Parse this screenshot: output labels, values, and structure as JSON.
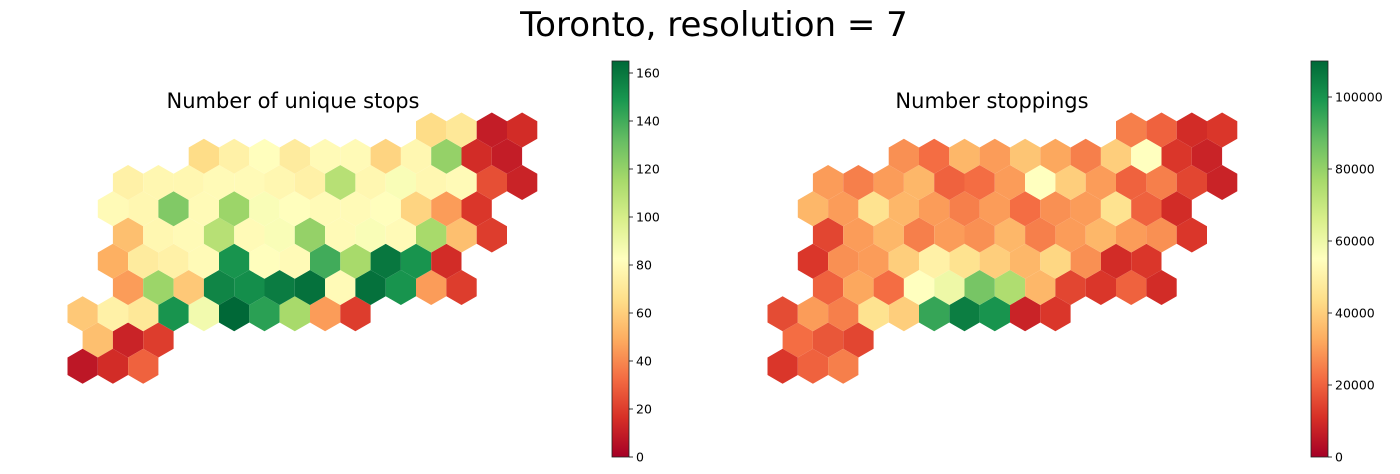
{
  "figure": {
    "title": "Toronto, resolution = 7"
  },
  "colormap": {
    "name": "RdYlGn",
    "stops": [
      "#a50026",
      "#d73027",
      "#f46d43",
      "#fdae61",
      "#fee08b",
      "#ffffbf",
      "#d9ef8b",
      "#a6d96a",
      "#66bd63",
      "#1a9850",
      "#006837"
    ]
  },
  "chart_data": [
    {
      "type": "heatmap",
      "title": "Number of unique stops",
      "colorbar": {
        "vmin": 0,
        "vmax": 165,
        "ticks": [
          0,
          20,
          40,
          60,
          80,
          100,
          120,
          140,
          160
        ]
      },
      "cells": [
        [
          8,
          2,
          55,
          15
        ],
        [
          8,
          3,
          12
        ],
        [
          8,
          4,
          20
        ],
        [
          9,
          2,
          8
        ],
        [
          9,
          3,
          15
        ],
        [
          9,
          4,
          30
        ],
        [
          7,
          2,
          58
        ],
        [
          7,
          3,
          75
        ],
        [
          7,
          4,
          70
        ],
        [
          7,
          5,
          62
        ],
        [
          7,
          6,
          80
        ],
        [
          7,
          8,
          50
        ],
        [
          7,
          9,
          115
        ],
        [
          7,
          10,
          45
        ],
        [
          7,
          11,
          20
        ],
        [
          6,
          3,
          45
        ],
        [
          6,
          4,
          78
        ],
        [
          6,
          5,
          58
        ],
        [
          6,
          6,
          75
        ],
        [
          6,
          7,
          78
        ],
        [
          6,
          8,
          80
        ],
        [
          6,
          9,
          75
        ],
        [
          6,
          10,
          80
        ],
        [
          6,
          11,
          82
        ],
        [
          6,
          12,
          60
        ],
        [
          6,
          13,
          45
        ],
        [
          6,
          14,
          20
        ],
        [
          5,
          3,
          50
        ],
        [
          5,
          4,
          72
        ],
        [
          5,
          5,
          75
        ],
        [
          5,
          6,
          80
        ],
        [
          5,
          7,
          80
        ],
        [
          5,
          8,
          82
        ],
        [
          5,
          9,
          80
        ],
        [
          5,
          10,
          78
        ],
        [
          5,
          11,
          80
        ],
        [
          5,
          12,
          62
        ],
        [
          5,
          13,
          55
        ],
        [
          5,
          14,
          15
        ],
        [
          4,
          3,
          55
        ],
        [
          4,
          4,
          78
        ],
        [
          4,
          5,
          80
        ],
        [
          4,
          6,
          82
        ],
        [
          4,
          7,
          80
        ],
        [
          4,
          8,
          85
        ],
        [
          4,
          9,
          82
        ],
        [
          4,
          10,
          80
        ],
        [
          4,
          11,
          85
        ],
        [
          4,
          12,
          80
        ],
        [
          4,
          13,
          82
        ],
        [
          4,
          14,
          55
        ],
        [
          4,
          15,
          20
        ],
        [
          3,
          3,
          80
        ],
        [
          3,
          4,
          78
        ],
        [
          3,
          5,
          78
        ],
        [
          3,
          6,
          80
        ],
        [
          3,
          7,
          80
        ],
        [
          3,
          8,
          85
        ],
        [
          3,
          9,
          82
        ],
        [
          3,
          10,
          80
        ],
        [
          3,
          11,
          80
        ],
        [
          3,
          12,
          82
        ],
        [
          3,
          13,
          62
        ],
        [
          3,
          14,
          45
        ],
        [
          3,
          15,
          18
        ],
        [
          2,
          3,
          75
        ],
        [
          2,
          4,
          78
        ],
        [
          2,
          5,
          78
        ],
        [
          2,
          6,
          80
        ],
        [
          2,
          7,
          80
        ],
        [
          2,
          8,
          78
        ],
        [
          2,
          9,
          75
        ],
        [
          2,
          10,
          80
        ],
        [
          2,
          11,
          78
        ],
        [
          2,
          12,
          85
        ],
        [
          2,
          13,
          78
        ],
        [
          2,
          14,
          80
        ],
        [
          2,
          15,
          25
        ],
        [
          2,
          16,
          12
        ],
        [
          1,
          6,
          65
        ],
        [
          1,
          7,
          75
        ],
        [
          1,
          8,
          82
        ],
        [
          1,
          9,
          72
        ],
        [
          1,
          10,
          80
        ],
        [
          1,
          11,
          80
        ],
        [
          1,
          12,
          62
        ],
        [
          1,
          13,
          78
        ],
        [
          1,
          14,
          120
        ],
        [
          1,
          15,
          15
        ],
        [
          1,
          16,
          10
        ],
        [
          0,
          13,
          65
        ],
        [
          0,
          14,
          70
        ],
        [
          0,
          15,
          10
        ],
        [
          0,
          16,
          15
        ]
      ],
      "highlights": [
        [
          7,
          5,
          150
        ],
        [
          7,
          7,
          165
        ],
        [
          6,
          8,
          158
        ],
        [
          6,
          9,
          162
        ],
        [
          7,
          8,
          145
        ],
        [
          5,
          12,
          160
        ],
        [
          7,
          6,
          88
        ],
        [
          6,
          7,
          152
        ],
        [
          6,
          6,
          155
        ],
        [
          5,
          7,
          150
        ],
        [
          5,
          10,
          140
        ],
        [
          5,
          11,
          115
        ],
        [
          4,
          6,
          110
        ],
        [
          3,
          5,
          125
        ],
        [
          3,
          7,
          118
        ],
        [
          2,
          10,
          110
        ],
        [
          6,
          12,
          150
        ],
        [
          6,
          11,
          162
        ],
        [
          5,
          13,
          150
        ],
        [
          4,
          13,
          115
        ],
        [
          4,
          9,
          120
        ],
        [
          6,
          4,
          118
        ]
      ]
    },
    {
      "type": "heatmap",
      "title": "Number stoppings",
      "colorbar": {
        "vmin": 0,
        "vmax": 110000,
        "ticks": [
          0,
          20000,
          40000,
          60000,
          80000,
          100000
        ]
      },
      "cells": [
        [
          8,
          2,
          22000
        ],
        [
          8,
          3,
          18000
        ],
        [
          8,
          4,
          15000
        ],
        [
          9,
          2,
          12000
        ],
        [
          9,
          3,
          20000
        ],
        [
          9,
          4,
          25000
        ],
        [
          7,
          2,
          16000
        ],
        [
          7,
          3,
          30000
        ],
        [
          7,
          4,
          25000
        ],
        [
          7,
          5,
          35000
        ],
        [
          7,
          6,
          40000
        ],
        [
          7,
          8,
          28000
        ],
        [
          7,
          9,
          100000
        ],
        [
          7,
          10,
          12000
        ],
        [
          7,
          11,
          15000
        ],
        [
          6,
          3,
          20000
        ],
        [
          6,
          4,
          32000
        ],
        [
          6,
          5,
          22000
        ],
        [
          6,
          6,
          30000
        ],
        [
          6,
          7,
          38000
        ],
        [
          6,
          8,
          45000
        ],
        [
          6,
          9,
          42000
        ],
        [
          6,
          10,
          35000
        ],
        [
          6,
          11,
          28000
        ],
        [
          6,
          12,
          32000
        ],
        [
          6,
          13,
          20000
        ],
        [
          6,
          14,
          10000
        ],
        [
          5,
          3,
          12000
        ],
        [
          5,
          4,
          28000
        ],
        [
          5,
          5,
          30000
        ],
        [
          5,
          6,
          40000
        ],
        [
          5,
          7,
          35000
        ],
        [
          5,
          8,
          45000
        ],
        [
          5,
          9,
          40000
        ],
        [
          5,
          10,
          35000
        ],
        [
          5,
          11,
          42000
        ],
        [
          5,
          12,
          30000
        ],
        [
          5,
          13,
          25000
        ],
        [
          5,
          14,
          12000
        ],
        [
          4,
          3,
          15000
        ],
        [
          4,
          4,
          30000
        ],
        [
          4,
          5,
          35000
        ],
        [
          4,
          6,
          38000
        ],
        [
          4,
          7,
          30000
        ],
        [
          4,
          8,
          28000
        ],
        [
          4,
          9,
          35000
        ],
        [
          4,
          10,
          25000
        ],
        [
          4,
          11,
          30000
        ],
        [
          4,
          12,
          35000
        ],
        [
          4,
          13,
          30000
        ],
        [
          4,
          14,
          28000
        ],
        [
          4,
          15,
          12000
        ],
        [
          3,
          3,
          35000
        ],
        [
          3,
          4,
          30000
        ],
        [
          3,
          5,
          40000
        ],
        [
          3,
          6,
          35000
        ],
        [
          3,
          7,
          30000
        ],
        [
          3,
          8,
          25000
        ],
        [
          3,
          9,
          30000
        ],
        [
          3,
          10,
          22000
        ],
        [
          3,
          11,
          28000
        ],
        [
          3,
          12,
          30000
        ],
        [
          3,
          13,
          45000
        ],
        [
          3,
          14,
          20000
        ],
        [
          3,
          15,
          10000
        ],
        [
          2,
          3,
          30000
        ],
        [
          2,
          4,
          25000
        ],
        [
          2,
          5,
          30000
        ],
        [
          2,
          6,
          35000
        ],
        [
          2,
          7,
          20000
        ],
        [
          2,
          8,
          22000
        ],
        [
          2,
          9,
          30000
        ],
        [
          2,
          10,
          35000
        ],
        [
          2,
          11,
          40000
        ],
        [
          2,
          12,
          30000
        ],
        [
          2,
          13,
          20000
        ],
        [
          2,
          14,
          25000
        ],
        [
          2,
          15,
          15000
        ],
        [
          2,
          16,
          8000
        ],
        [
          1,
          6,
          28000
        ],
        [
          1,
          7,
          22000
        ],
        [
          1,
          8,
          35000
        ],
        [
          1,
          9,
          30000
        ],
        [
          1,
          10,
          38000
        ],
        [
          1,
          11,
          32000
        ],
        [
          1,
          12,
          25000
        ],
        [
          1,
          13,
          40000
        ],
        [
          1,
          14,
          55000
        ],
        [
          1,
          15,
          12000
        ],
        [
          1,
          16,
          8000
        ],
        [
          0,
          13,
          25000
        ],
        [
          0,
          14,
          20000
        ],
        [
          0,
          15,
          10000
        ],
        [
          0,
          16,
          12000
        ]
      ],
      "highlights": [
        [
          7,
          5,
          45000
        ],
        [
          7,
          7,
          95000
        ],
        [
          6,
          8,
          85000
        ],
        [
          6,
          9,
          75000
        ],
        [
          7,
          8,
          105000
        ],
        [
          6,
          7,
          60000
        ],
        [
          6,
          6,
          55000
        ],
        [
          5,
          7,
          50000
        ],
        [
          5,
          12,
          28000
        ],
        [
          6,
          11,
          15000
        ],
        [
          6,
          12,
          12000
        ],
        [
          5,
          13,
          10000
        ],
        [
          7,
          10,
          8000
        ],
        [
          7,
          11,
          12000
        ],
        [
          2,
          10,
          55000
        ],
        [
          3,
          7,
          30000
        ],
        [
          4,
          6,
          25000
        ],
        [
          3,
          5,
          45000
        ]
      ]
    }
  ]
}
